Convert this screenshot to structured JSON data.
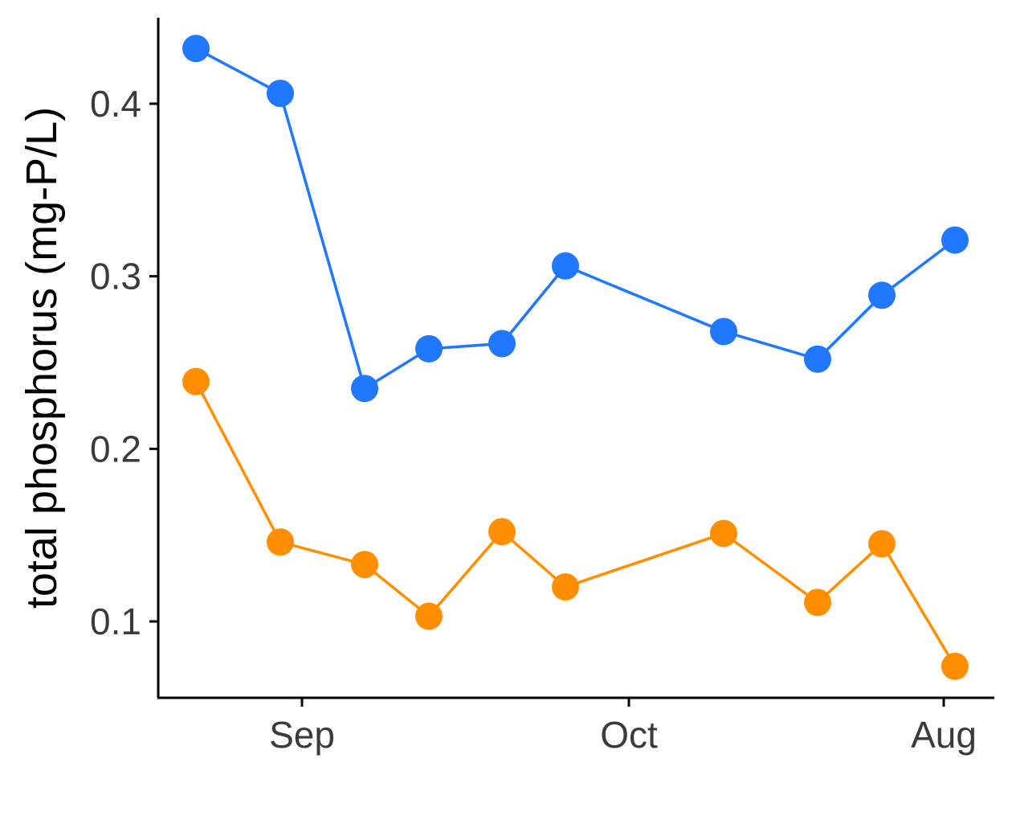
{
  "chart_data": {
    "type": "line",
    "title": "",
    "xlabel": "",
    "ylabel": "total phosphorus (mg-P/L)",
    "ylim": [
      0.06,
      0.45
    ],
    "x": [
      1,
      2,
      3,
      4,
      5,
      6,
      7,
      8,
      9,
      10
    ],
    "x_ticks": [
      {
        "label": "Sep",
        "pos": 2.3
      },
      {
        "label": "Oct",
        "pos": 6.9
      },
      {
        "label": "Aug",
        "pos": 10
      }
    ],
    "y_ticks": [
      {
        "label": "0.1",
        "value": 0.1
      },
      {
        "label": "0.2",
        "value": 0.2
      },
      {
        "label": "0.3",
        "value": 0.3
      },
      {
        "label": "0.4",
        "value": 0.4
      }
    ],
    "grid": false,
    "legend": "none",
    "series": [
      {
        "color": "#1f78ff",
        "x_pos": [
          1,
          2.2,
          3.4,
          4.3,
          5.3,
          6.2,
          7.6,
          8.9,
          9.8,
          10.8
        ],
        "values": [
          0.432,
          0.406,
          0.235,
          0.258,
          0.261,
          0.306,
          0.268,
          0.252,
          0.289,
          0.321
        ]
      },
      {
        "color": "#ff8f00",
        "x_pos": [
          1,
          2.2,
          3.4,
          4.3,
          5.3,
          6.2,
          7.6,
          8.9,
          9.8,
          10.8
        ],
        "values": [
          0.239,
          0.146,
          0.133,
          0.103,
          0.152,
          0.12,
          0.151,
          0.111,
          0.145,
          0.074
        ]
      }
    ]
  }
}
